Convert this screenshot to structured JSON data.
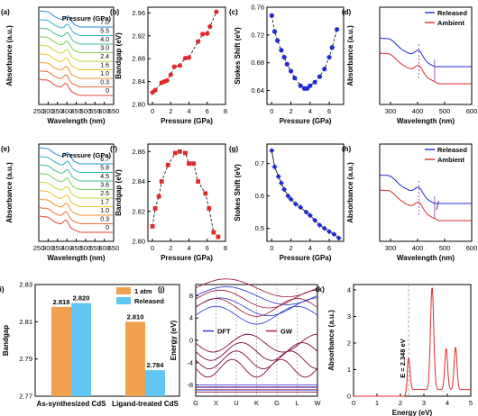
{
  "colors": {
    "blue": "#1f2bd6",
    "red": "#e02a2a",
    "orange": "#f2a24e",
    "sky": "#62c6f2",
    "dark_red": "#9c1035"
  },
  "chart_data": [
    {
      "id": "a",
      "panel_label": "(a)",
      "type": "line",
      "xlabel": "Wavelength (nm)",
      "ylabel": "Absorbance (a.u.)",
      "xlim": [
        250,
        650
      ],
      "x_ticks": [
        "250",
        "300",
        "350",
        "400",
        "450",
        "500",
        "550",
        "600",
        "650"
      ],
      "legend_title": "Pressure (GPa)",
      "series": [
        {
          "name": "0",
          "color": "#e8412f"
        },
        {
          "name": "0.3",
          "color": "#f06a2e"
        },
        {
          "name": "1.0",
          "color": "#f4932a"
        },
        {
          "name": "1.6",
          "color": "#f2bf2a"
        },
        {
          "name": "2.4",
          "color": "#c8d43a"
        },
        {
          "name": "3.0",
          "color": "#7ccf5b"
        },
        {
          "name": "4.0",
          "color": "#3fbf8f"
        },
        {
          "name": "5.5",
          "color": "#2ab3c8"
        },
        {
          "name": "7.0",
          "color": "#1c8fd8"
        }
      ]
    },
    {
      "id": "b",
      "panel_label": "(b)",
      "type": "scatter",
      "xlabel": "Pressure (GPa)",
      "ylabel": "Bandgap (eV)",
      "xlim": [
        -0.5,
        8
      ],
      "ylim": [
        2.8,
        2.97
      ],
      "x_ticks": [
        "0",
        "2",
        "4",
        "6",
        "8"
      ],
      "y_ticks": [
        "2.80",
        "2.84",
        "2.88",
        "2.92",
        "2.96"
      ],
      "x": [
        0,
        0.3,
        1.0,
        1.3,
        1.6,
        2.0,
        2.4,
        3.0,
        3.6,
        4.0,
        5.0,
        5.5,
        6.0,
        6.3,
        7.0
      ],
      "y": [
        2.821,
        2.825,
        2.838,
        2.84,
        2.842,
        2.852,
        2.866,
        2.868,
        2.881,
        2.882,
        2.91,
        2.923,
        2.924,
        2.936,
        2.962
      ]
    },
    {
      "id": "c",
      "panel_label": "(c)",
      "type": "scatter",
      "xlabel": "Pressure (GPa)",
      "ylabel": "Stokes Shift (eV)",
      "xlim": [
        -0.5,
        7.5
      ],
      "ylim": [
        0.62,
        0.76
      ],
      "x_ticks": [
        "0",
        "2",
        "4",
        "6"
      ],
      "y_ticks": [
        "0.64",
        "0.68",
        "0.72",
        "0.76"
      ],
      "x": [
        0,
        0.3,
        0.6,
        1.0,
        1.3,
        1.6,
        2.0,
        2.4,
        3.0,
        3.4,
        3.7,
        4.0,
        4.5,
        5.0,
        5.5,
        6.0,
        6.3,
        6.8
      ],
      "y": [
        0.748,
        0.725,
        0.712,
        0.698,
        0.688,
        0.678,
        0.668,
        0.658,
        0.647,
        0.643,
        0.643,
        0.647,
        0.652,
        0.66,
        0.671,
        0.688,
        0.702,
        0.728
      ]
    },
    {
      "id": "d",
      "panel_label": "(d)",
      "type": "line",
      "xlabel": "Wavelength (nm)",
      "ylabel": "Absorbance (a.u.)",
      "xlim": [
        260,
        600
      ],
      "x_ticks": [
        "300",
        "400",
        "500",
        "600"
      ],
      "series": [
        {
          "name": "Released",
          "color": "#1f2bd6"
        },
        {
          "name": "Ambient",
          "color": "#e02a2a"
        }
      ]
    },
    {
      "id": "e",
      "panel_label": "(e)",
      "type": "line",
      "xlabel": "Wavelength (nm)",
      "ylabel": "Absorbance (a.u.)",
      "xlim": [
        250,
        650
      ],
      "x_ticks": [
        "250",
        "300",
        "350",
        "400",
        "450",
        "500",
        "550",
        "600",
        "650"
      ],
      "legend_title": "Pressure (GPa)",
      "series": [
        {
          "name": "0",
          "color": "#e8412f"
        },
        {
          "name": "0.3",
          "color": "#f06a2e"
        },
        {
          "name": "1.0",
          "color": "#f4932a"
        },
        {
          "name": "1.7",
          "color": "#f2bf2a"
        },
        {
          "name": "2.5",
          "color": "#c8d43a"
        },
        {
          "name": "3.6",
          "color": "#7ccf5b"
        },
        {
          "name": "4.5",
          "color": "#3fbf8f"
        },
        {
          "name": "5.8",
          "color": "#2ab3c8"
        },
        {
          "name": "6.7",
          "color": "#1c8fd8"
        }
      ]
    },
    {
      "id": "f",
      "panel_label": "(f)",
      "type": "scatter",
      "xlabel": "Pressure (GPa)",
      "ylabel": "Bandgap (eV)",
      "xlim": [
        -0.5,
        8
      ],
      "ylim": [
        2.8,
        2.865
      ],
      "x_ticks": [
        "0",
        "2",
        "4",
        "6",
        "8"
      ],
      "y_ticks": [
        "2.80",
        "2.82",
        "2.84",
        "2.86"
      ],
      "x": [
        0,
        0.3,
        0.7,
        1.0,
        1.7,
        2.5,
        3.0,
        3.6,
        4.0,
        4.5,
        5.0,
        5.8,
        6.2,
        6.7,
        7.2
      ],
      "y": [
        2.81,
        2.822,
        2.83,
        2.84,
        2.851,
        2.859,
        2.86,
        2.859,
        2.852,
        2.852,
        2.84,
        2.832,
        2.822,
        2.806,
        2.803
      ]
    },
    {
      "id": "g",
      "panel_label": "(g)",
      "type": "scatter",
      "xlabel": "Pressure (GPa)",
      "ylabel": "Stokes Shift (eV)",
      "xlim": [
        -0.5,
        7.5
      ],
      "ylim": [
        0.46,
        0.76
      ],
      "x_ticks": [
        "0",
        "2",
        "4",
        "6"
      ],
      "y_ticks": [
        "0.5",
        "0.6",
        "0.7"
      ],
      "x": [
        0,
        0.3,
        0.7,
        1.0,
        1.3,
        1.7,
        2.0,
        2.5,
        3.0,
        3.6,
        4.0,
        4.5,
        5.0,
        5.5,
        6.0,
        6.5,
        7.0
      ],
      "y": [
        0.74,
        0.69,
        0.66,
        0.64,
        0.62,
        0.6,
        0.59,
        0.575,
        0.565,
        0.55,
        0.54,
        0.525,
        0.51,
        0.5,
        0.49,
        0.482,
        0.47
      ]
    },
    {
      "id": "h",
      "panel_label": "(h)",
      "type": "line",
      "xlabel": "Wavelength (nm)",
      "ylabel": "Absorbance (a.u.)",
      "xlim": [
        260,
        600
      ],
      "x_ticks": [
        "300",
        "400",
        "500",
        "600"
      ],
      "series": [
        {
          "name": "Released",
          "color": "#1f2bd6"
        },
        {
          "name": "Ambient",
          "color": "#e02a2a"
        }
      ]
    },
    {
      "id": "i",
      "panel_label": "(i)",
      "type": "bar",
      "ylabel": "Bandgap",
      "ylim": [
        2.77,
        2.83
      ],
      "y_ticks": [
        "2.77",
        "2.79",
        "2.81",
        "2.83"
      ],
      "categories": [
        "As-synthesized CdS",
        "Ligand-treated CdS"
      ],
      "series": [
        {
          "name": "1 atm",
          "color": "#f2a24e",
          "values": [
            2.818,
            2.81
          ],
          "labels": [
            "2.818",
            "2.810"
          ]
        },
        {
          "name": "Released",
          "color": "#62c6f2",
          "values": [
            2.82,
            2.784
          ],
          "labels": [
            "2.820",
            "2.784"
          ]
        }
      ]
    },
    {
      "id": "j",
      "panel_label": "(j)",
      "type": "line",
      "ylabel": "Energy (eV)",
      "ylim": [
        -10,
        10
      ],
      "y_ticks": [
        "-8",
        "-4",
        "0",
        "4",
        "8"
      ],
      "kpoints": [
        "G",
        "X",
        "U",
        "K",
        "G",
        "L",
        "W"
      ],
      "series": [
        {
          "name": "DFT",
          "color": "#1f2bd6"
        },
        {
          "name": "GW",
          "color": "#9c1035"
        }
      ]
    },
    {
      "id": "k",
      "panel_label": "(k)",
      "type": "line",
      "xlabel": "Energy (eV)",
      "ylabel": "Absorbance (a.u.)",
      "xlim": [
        0,
        5
      ],
      "ylim": [
        0,
        4.2
      ],
      "x_ticks": [
        "0",
        "1",
        "2",
        "3",
        "4",
        "5"
      ],
      "y_ticks": [
        "0",
        "1",
        "2",
        "3",
        "4"
      ],
      "annotation": "E = 2.348 eV",
      "marker_x": 2.348,
      "peaks": [
        {
          "x": 2.35,
          "y": 1.2,
          "w": 0.06
        },
        {
          "x": 3.35,
          "y": 3.85,
          "w": 0.07
        },
        {
          "x": 3.95,
          "y": 1.55,
          "w": 0.06
        },
        {
          "x": 4.35,
          "y": 1.6,
          "w": 0.06
        }
      ]
    }
  ]
}
